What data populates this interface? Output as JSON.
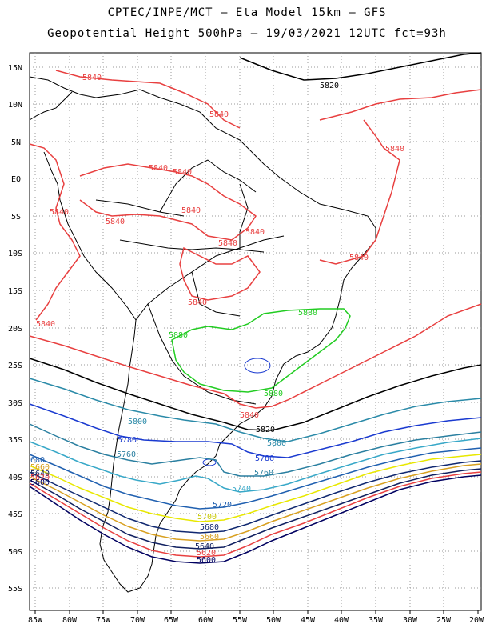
{
  "header": {
    "line1": "CPTEC/INPE/MCT – Eta Model 15km – GFS",
    "line2": "Geopotential Height 500hPa – 19/03/2021 12UTC fct=93h"
  },
  "axes": {
    "lon_labels": [
      "85W",
      "80W",
      "75W",
      "70W",
      "65W",
      "60W",
      "55W",
      "50W",
      "45W",
      "40W",
      "35W",
      "30W",
      "25W",
      "20W"
    ],
    "lat_labels": [
      "15N",
      "10N",
      "5N",
      "EQ",
      "5S",
      "10S",
      "15S",
      "20S",
      "25S",
      "30S",
      "35S",
      "40S",
      "45S",
      "50S",
      "55S"
    ]
  },
  "contours": [
    {
      "value": "5880",
      "color": "#22cc22"
    },
    {
      "value": "5840",
      "color": "#e84040"
    },
    {
      "value": "5820",
      "color": "#000000"
    },
    {
      "value": "5800",
      "color": "#2a8aa8"
    },
    {
      "value": "5780",
      "color": "#1a3ad0"
    },
    {
      "value": "5760",
      "color": "#2a7fa0"
    },
    {
      "value": "5740",
      "color": "#38a8c8"
    },
    {
      "value": "5720",
      "color": "#2060b0"
    },
    {
      "value": "5700",
      "color": "#e8e800"
    },
    {
      "value": "5680",
      "color": "#102870"
    },
    {
      "value": "5660",
      "color": "#d8a020"
    },
    {
      "value": "5640",
      "color": "#102060"
    },
    {
      "value": "5620",
      "color": "#e84040"
    },
    {
      "value": "5600",
      "color": "#000060"
    }
  ],
  "edge_labels": [
    "680",
    "5660",
    "5640",
    "5620",
    "5600"
  ]
}
